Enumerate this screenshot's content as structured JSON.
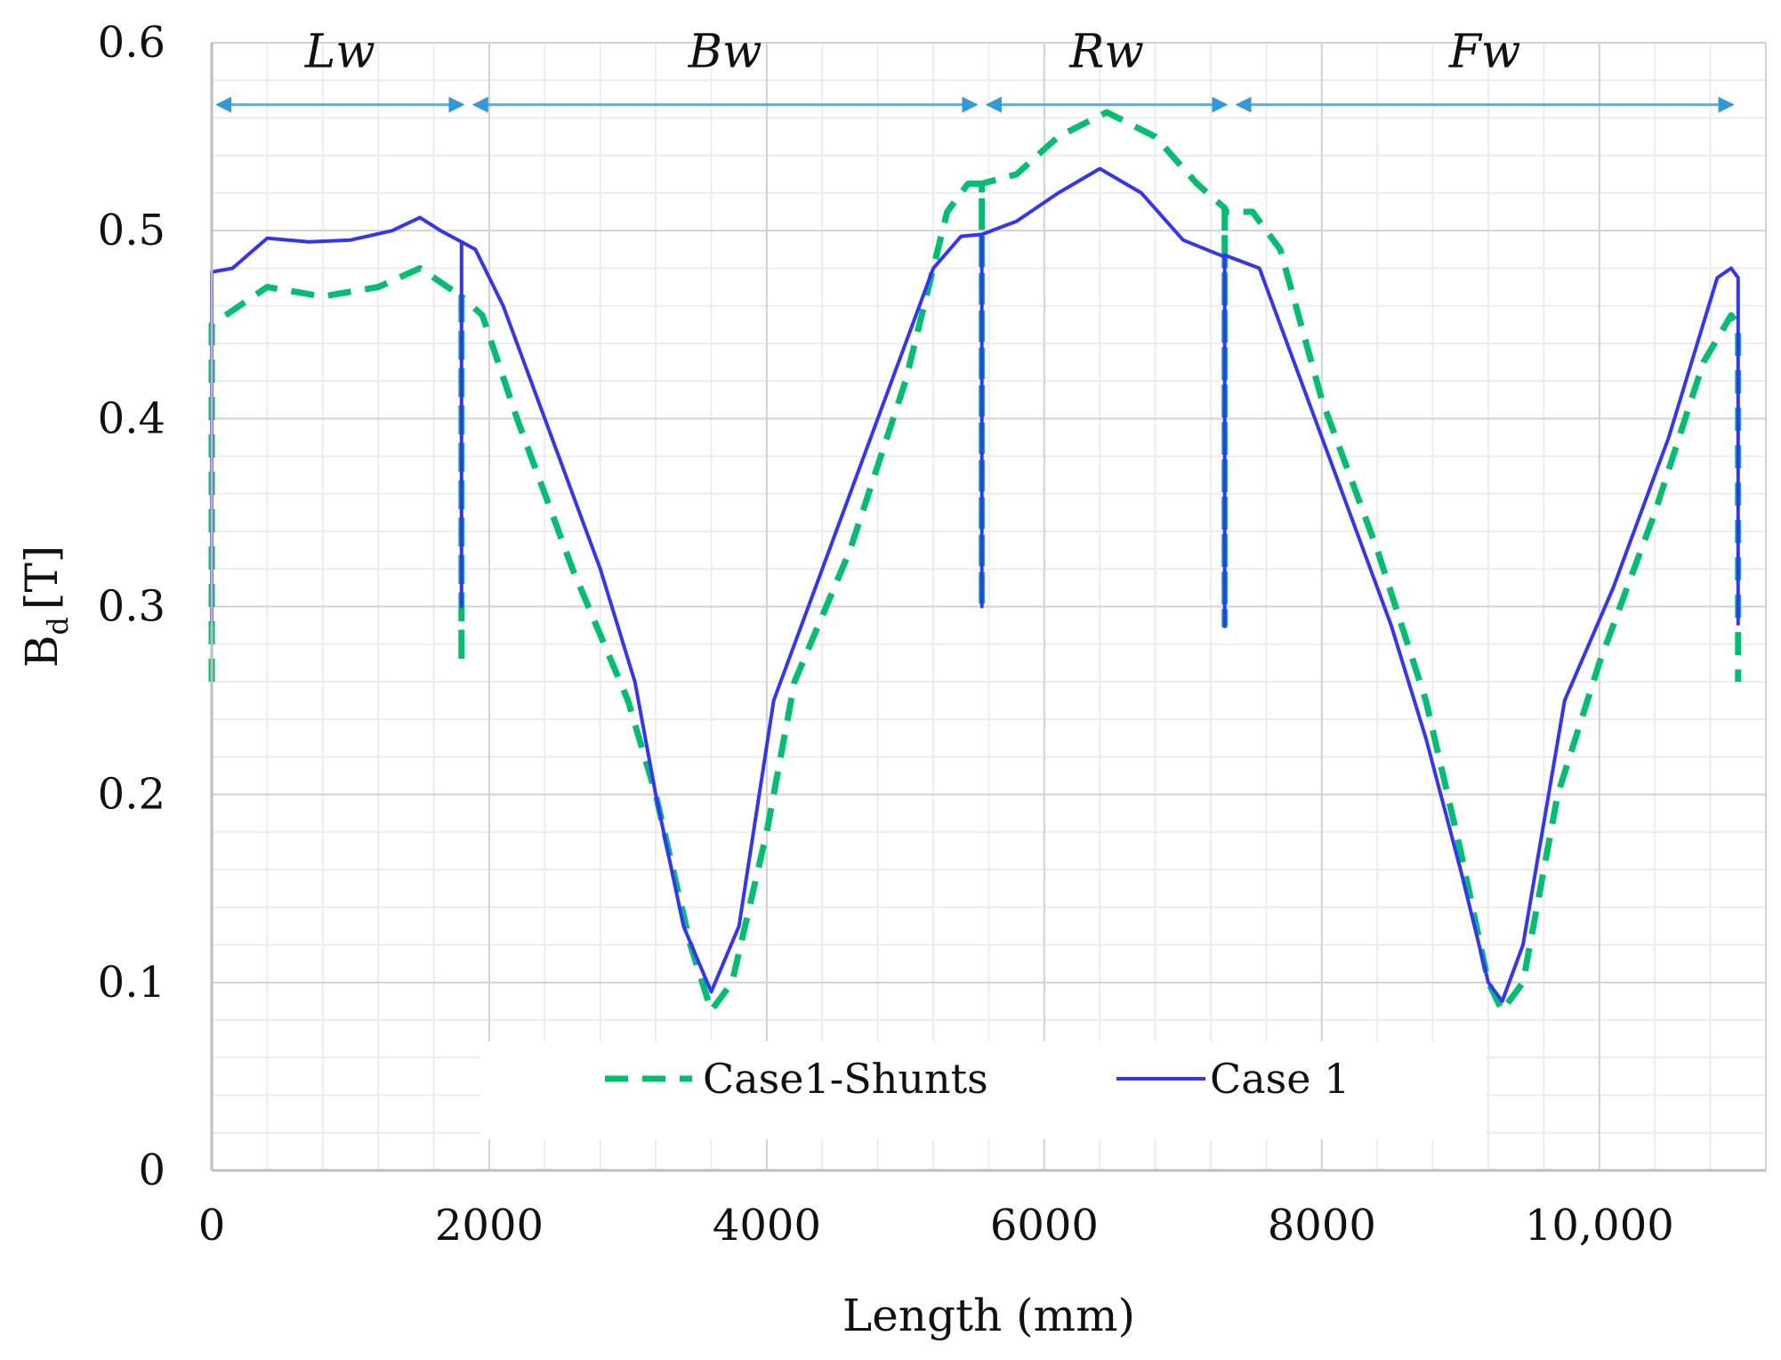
{
  "chart_data": {
    "type": "line",
    "title": "",
    "xlabel": "Length (mm)",
    "ylabel": "B_d [T]",
    "ylabel_main": "B",
    "ylabel_sub": "d",
    "ylabel_unit": "[T]",
    "xlim": [
      0,
      11200
    ],
    "ylim": [
      0,
      0.6
    ],
    "xticks": [
      0,
      2000,
      4000,
      6000,
      8000,
      10000
    ],
    "xtick_labels": [
      "0",
      "2000",
      "4000",
      "6000",
      "8000",
      "10,000"
    ],
    "yticks": [
      0,
      0.1,
      0.2,
      0.3,
      0.4,
      0.5,
      0.6
    ],
    "ytick_labels": [
      "0",
      "0.1",
      "0.2",
      "0.3",
      "0.4",
      "0.5",
      "0.6"
    ],
    "grid": true,
    "legend_position": "bottom-center",
    "regions": [
      {
        "label": "Lw",
        "x_start": 0,
        "x_end": 1850
      },
      {
        "label": "Bw",
        "x_start": 1850,
        "x_end": 5550
      },
      {
        "label": "Rw",
        "x_start": 5550,
        "x_end": 7350
      },
      {
        "label": "Fw",
        "x_start": 7350,
        "x_end": 11000
      }
    ],
    "region_arrow_level": 0.567,
    "series": [
      {
        "name": "Case1-Shunts",
        "color": "#00c070",
        "style": "dashed",
        "points": [
          [
            0,
            0.26
          ],
          [
            0,
            0.45
          ],
          [
            100,
            0.455
          ],
          [
            400,
            0.47
          ],
          [
            800,
            0.465
          ],
          [
            1200,
            0.47
          ],
          [
            1500,
            0.48
          ],
          [
            1700,
            0.47
          ],
          [
            1800,
            0.465
          ],
          [
            1800,
            0.27
          ],
          [
            1800,
            0.465
          ],
          [
            1950,
            0.455
          ],
          [
            2200,
            0.4
          ],
          [
            2600,
            0.32
          ],
          [
            3000,
            0.25
          ],
          [
            3200,
            0.2
          ],
          [
            3450,
            0.12
          ],
          [
            3600,
            0.085
          ],
          [
            3750,
            0.1
          ],
          [
            4000,
            0.18
          ],
          [
            4200,
            0.26
          ],
          [
            4600,
            0.33
          ],
          [
            5000,
            0.42
          ],
          [
            5300,
            0.51
          ],
          [
            5450,
            0.525
          ],
          [
            5550,
            0.525
          ],
          [
            5550,
            0.3
          ],
          [
            5550,
            0.525
          ],
          [
            5800,
            0.53
          ],
          [
            6100,
            0.55
          ],
          [
            6450,
            0.563
          ],
          [
            6800,
            0.55
          ],
          [
            7100,
            0.525
          ],
          [
            7300,
            0.512
          ],
          [
            7300,
            0.29
          ],
          [
            7300,
            0.51
          ],
          [
            7500,
            0.51
          ],
          [
            7700,
            0.49
          ],
          [
            8000,
            0.41
          ],
          [
            8400,
            0.33
          ],
          [
            8750,
            0.25
          ],
          [
            9000,
            0.17
          ],
          [
            9200,
            0.1
          ],
          [
            9300,
            0.085
          ],
          [
            9450,
            0.1
          ],
          [
            9700,
            0.2
          ],
          [
            10000,
            0.27
          ],
          [
            10400,
            0.35
          ],
          [
            10750,
            0.43
          ],
          [
            10950,
            0.455
          ],
          [
            11000,
            0.45
          ],
          [
            11000,
            0.26
          ]
        ]
      },
      {
        "name": "Case 1",
        "color": "#3333ff",
        "style": "solid",
        "points": [
          [
            0,
            0.29
          ],
          [
            0,
            0.478
          ],
          [
            150,
            0.48
          ],
          [
            400,
            0.496
          ],
          [
            700,
            0.494
          ],
          [
            1000,
            0.495
          ],
          [
            1300,
            0.5
          ],
          [
            1500,
            0.507
          ],
          [
            1650,
            0.5
          ],
          [
            1800,
            0.494
          ],
          [
            1800,
            0.3
          ],
          [
            1800,
            0.494
          ],
          [
            1900,
            0.49
          ],
          [
            2100,
            0.46
          ],
          [
            2500,
            0.38
          ],
          [
            2800,
            0.32
          ],
          [
            3050,
            0.26
          ],
          [
            3200,
            0.2
          ],
          [
            3400,
            0.13
          ],
          [
            3600,
            0.095
          ],
          [
            3800,
            0.13
          ],
          [
            4050,
            0.25
          ],
          [
            4400,
            0.32
          ],
          [
            4800,
            0.4
          ],
          [
            5200,
            0.48
          ],
          [
            5400,
            0.497
          ],
          [
            5550,
            0.498
          ],
          [
            5550,
            0.3
          ],
          [
            5550,
            0.498
          ],
          [
            5800,
            0.505
          ],
          [
            6100,
            0.52
          ],
          [
            6400,
            0.533
          ],
          [
            6700,
            0.52
          ],
          [
            7000,
            0.495
          ],
          [
            7300,
            0.486
          ],
          [
            7300,
            0.29
          ],
          [
            7300,
            0.487
          ],
          [
            7550,
            0.48
          ],
          [
            7800,
            0.43
          ],
          [
            8200,
            0.35
          ],
          [
            8500,
            0.29
          ],
          [
            8750,
            0.23
          ],
          [
            9000,
            0.16
          ],
          [
            9200,
            0.1
          ],
          [
            9300,
            0.09
          ],
          [
            9450,
            0.12
          ],
          [
            9750,
            0.25
          ],
          [
            10100,
            0.31
          ],
          [
            10500,
            0.39
          ],
          [
            10850,
            0.475
          ],
          [
            10950,
            0.48
          ],
          [
            11000,
            0.475
          ],
          [
            11000,
            0.29
          ]
        ]
      }
    ]
  }
}
